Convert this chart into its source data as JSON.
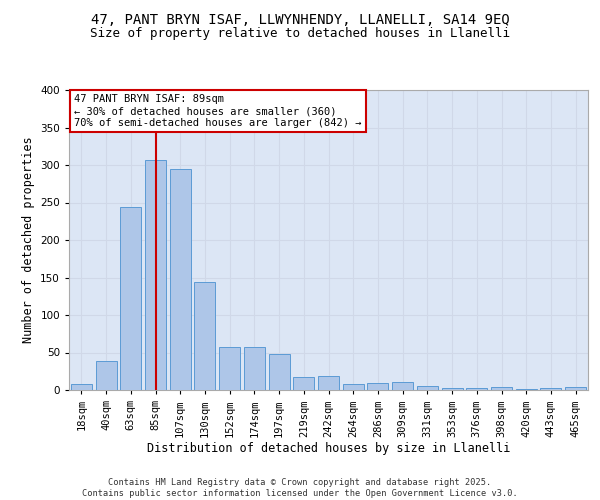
{
  "title_line1": "47, PANT BRYN ISAF, LLWYNHENDY, LLANELLI, SA14 9EQ",
  "title_line2": "Size of property relative to detached houses in Llanelli",
  "xlabel": "Distribution of detached houses by size in Llanelli",
  "ylabel": "Number of detached properties",
  "categories": [
    "18sqm",
    "40sqm",
    "63sqm",
    "85sqm",
    "107sqm",
    "130sqm",
    "152sqm",
    "174sqm",
    "197sqm",
    "219sqm",
    "242sqm",
    "264sqm",
    "286sqm",
    "309sqm",
    "331sqm",
    "353sqm",
    "376sqm",
    "398sqm",
    "420sqm",
    "443sqm",
    "465sqm"
  ],
  "values": [
    8,
    39,
    244,
    307,
    295,
    144,
    57,
    57,
    48,
    18,
    19,
    8,
    10,
    11,
    5,
    3,
    3,
    4,
    1,
    3,
    4
  ],
  "bar_color": "#aec6e8",
  "bar_edge_color": "#5b9bd5",
  "grid_color": "#d0d8e8",
  "background_color": "#dce6f5",
  "vline_x_index": 3,
  "vline_color": "#cc0000",
  "annotation_text": "47 PANT BRYN ISAF: 89sqm\n← 30% of detached houses are smaller (360)\n70% of semi-detached houses are larger (842) →",
  "annotation_box_color": "#cc0000",
  "ylim": [
    0,
    400
  ],
  "yticks": [
    0,
    50,
    100,
    150,
    200,
    250,
    300,
    350,
    400
  ],
  "footer_text": "Contains HM Land Registry data © Crown copyright and database right 2025.\nContains public sector information licensed under the Open Government Licence v3.0.",
  "title_fontsize": 10,
  "subtitle_fontsize": 9,
  "axis_label_fontsize": 8.5,
  "tick_fontsize": 7.5,
  "annotation_fontsize": 7.5
}
